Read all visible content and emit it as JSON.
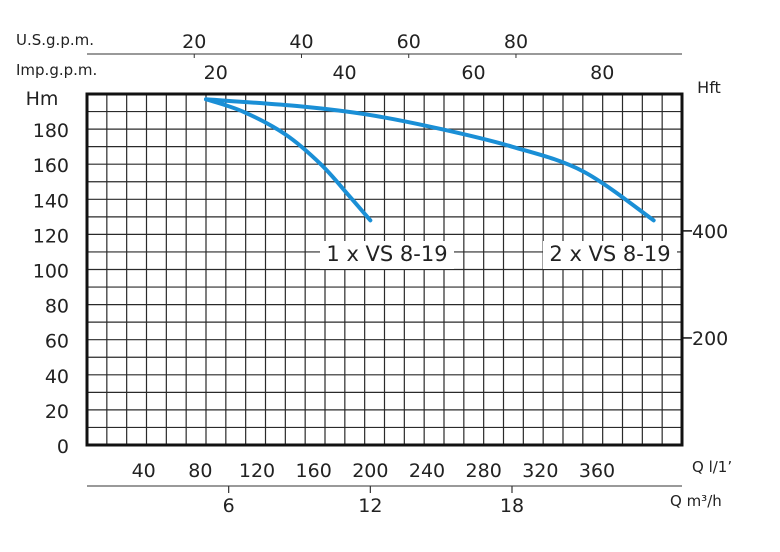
{
  "chart_data": {
    "type": "line",
    "title": "",
    "x_primary": {
      "unit_label": "Q l/1’",
      "range": [
        0,
        420
      ],
      "ticks": [
        40,
        80,
        120,
        160,
        200,
        240,
        280,
        320,
        360
      ]
    },
    "x_secondary_bottom": {
      "unit_label": "Q m³/h",
      "ticks": [
        6,
        12,
        18
      ],
      "ticks_in_primary_units": [
        100,
        200,
        300
      ]
    },
    "x_secondary_top_us": {
      "unit_label": "U.S.g.p.m.",
      "ticks": [
        20,
        40,
        60,
        80
      ],
      "ticks_in_primary_units": [
        75.7,
        151.4,
        227.1,
        302.8
      ]
    },
    "x_secondary_top_imp": {
      "unit_label": "Imp.g.p.m.",
      "ticks": [
        20,
        40,
        60,
        80
      ],
      "ticks_in_primary_units": [
        90.9,
        181.8,
        272.8,
        363.7
      ]
    },
    "y_primary": {
      "unit_label": "Hm",
      "range": [
        0,
        200
      ],
      "ticks": [
        0,
        20,
        40,
        60,
        80,
        100,
        120,
        140,
        160,
        180
      ]
    },
    "y_secondary": {
      "unit_label": "Hft",
      "ticks": [
        200,
        400
      ],
      "ticks_in_primary_units": [
        61,
        122
      ]
    },
    "grid": true,
    "series": [
      {
        "name": "1 x VS 8-19",
        "color": "#1a8fd6",
        "x": [
          84,
          110,
          140,
          165,
          185,
          200
        ],
        "y": [
          197,
          190,
          177,
          160,
          142,
          128
        ]
      },
      {
        "name": "2 x VS 8-19",
        "color": "#1a8fd6",
        "x": [
          84,
          150,
          200,
          250,
          300,
          350,
          400
        ],
        "y": [
          197,
          193,
          188,
          180,
          170,
          156,
          128
        ]
      }
    ]
  }
}
